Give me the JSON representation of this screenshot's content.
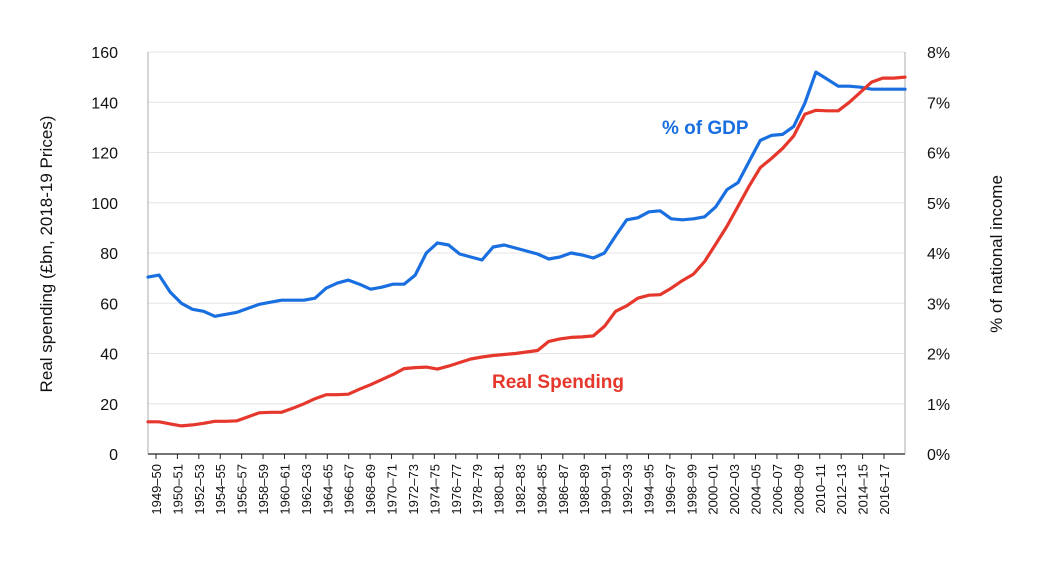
{
  "chart_data": {
    "type": "line",
    "title": "",
    "ylabel": "Real spending (£bn, 2018-19 Prices)",
    "y2label": "% of national income",
    "ylim": [
      0,
      160
    ],
    "y2lim": [
      0,
      8
    ],
    "yticks": [
      "0",
      "20",
      "40",
      "60",
      "80",
      "100",
      "120",
      "140",
      "160"
    ],
    "y2ticks": [
      "0%",
      "1%",
      "2%",
      "3%",
      "4%",
      "5%",
      "6%",
      "7%",
      "8%"
    ],
    "grid": true,
    "legend": "inline labels",
    "xtick_labels": [
      "1949–50",
      "1950–51",
      "1952–53",
      "1954–55",
      "1956–57",
      "1958–59",
      "1960–61",
      "1962–63",
      "1964–65",
      "1966–67",
      "1968–69",
      "1970–71",
      "1972–73",
      "1974–75",
      "1976–77",
      "1978–79",
      "1980–81",
      "1982–83",
      "1984–85",
      "1986–87",
      "1988–89",
      "1990–91",
      "1992–93",
      "1994–95",
      "1996–97",
      "1998–99",
      "2000–01",
      "2002–03",
      "2004–05",
      "2006–07",
      "2008–09",
      "2010–11",
      "2012–13",
      "2014–15",
      "2016–17"
    ],
    "x": [
      "1949–50",
      "1950–51",
      "1951–52",
      "1952–53",
      "1953–54",
      "1954–55",
      "1955–56",
      "1956–57",
      "1957–58",
      "1958–59",
      "1959–60",
      "1960–61",
      "1961–62",
      "1962–63",
      "1963–64",
      "1964–65",
      "1965–66",
      "1966–67",
      "1967–68",
      "1968–69",
      "1969–70",
      "1970–71",
      "1971–72",
      "1972–73",
      "1973–74",
      "1974–75",
      "1975–76",
      "1976–77",
      "1977–78",
      "1978–79",
      "1979–80",
      "1980–81",
      "1981–82",
      "1982–83",
      "1983–84",
      "1984–85",
      "1985–86",
      "1986–87",
      "1987–88",
      "1988–89",
      "1989–90",
      "1990–91",
      "1991–92",
      "1992–93",
      "1993–94",
      "1994–95",
      "1995–96",
      "1996–97",
      "1997–98",
      "1998–99",
      "1999–00",
      "2000–01",
      "2001–02",
      "2002–03",
      "2003–04",
      "2004–05",
      "2005–06",
      "2006–07",
      "2007–08",
      "2008–09",
      "2009–10",
      "2010–11",
      "2011–12",
      "2012–13",
      "2013–14",
      "2014–15",
      "2015–16",
      "2016–17",
      "2017–18"
    ],
    "series": [
      {
        "name": "% of GDP",
        "axis": "right",
        "color": "#1a6fe0",
        "values": [
          3.52,
          3.56,
          3.22,
          3.0,
          2.88,
          2.84,
          2.74,
          2.78,
          2.82,
          2.9,
          2.98,
          3.02,
          3.06,
          3.06,
          3.06,
          3.1,
          3.3,
          3.4,
          3.46,
          3.38,
          3.28,
          3.32,
          3.38,
          3.38,
          3.56,
          4.0,
          4.2,
          4.16,
          3.98,
          3.92,
          3.86,
          4.12,
          4.16,
          4.1,
          4.04,
          3.98,
          3.88,
          3.92,
          4.0,
          3.96,
          3.9,
          4.0,
          4.34,
          4.66,
          4.7,
          4.82,
          4.84,
          4.68,
          4.66,
          4.68,
          4.72,
          4.92,
          5.26,
          5.4,
          5.82,
          6.24,
          6.34,
          6.36,
          6.52,
          6.98,
          7.6,
          7.46,
          7.32,
          7.32,
          7.3,
          7.26,
          7.26,
          7.26,
          7.26
        ]
      },
      {
        "name": "Real Spending",
        "axis": "left",
        "color": "#e5372b",
        "values": [
          12.8,
          12.8,
          12.0,
          11.2,
          11.6,
          12.2,
          13.0,
          13.0,
          13.2,
          14.8,
          16.4,
          16.6,
          16.6,
          18.2,
          20.0,
          22.0,
          23.6,
          23.6,
          23.8,
          25.8,
          27.6,
          29.6,
          31.6,
          34.0,
          34.4,
          34.6,
          33.8,
          35.0,
          36.4,
          37.8,
          38.6,
          39.2,
          39.6,
          40.0,
          40.6,
          41.2,
          44.8,
          45.8,
          46.4,
          46.6,
          47.0,
          50.8,
          56.8,
          59.0,
          62.0,
          63.2,
          63.4,
          66.0,
          69.0,
          71.6,
          76.6,
          83.6,
          90.6,
          98.6,
          106.6,
          114.0,
          117.6,
          121.6,
          126.6,
          135.2,
          136.8,
          136.6,
          136.6,
          140.0,
          144.0,
          148.0,
          149.6,
          149.6,
          150.0
        ]
      }
    ],
    "annotations": [
      "% of GDP",
      "Real Spending"
    ]
  }
}
